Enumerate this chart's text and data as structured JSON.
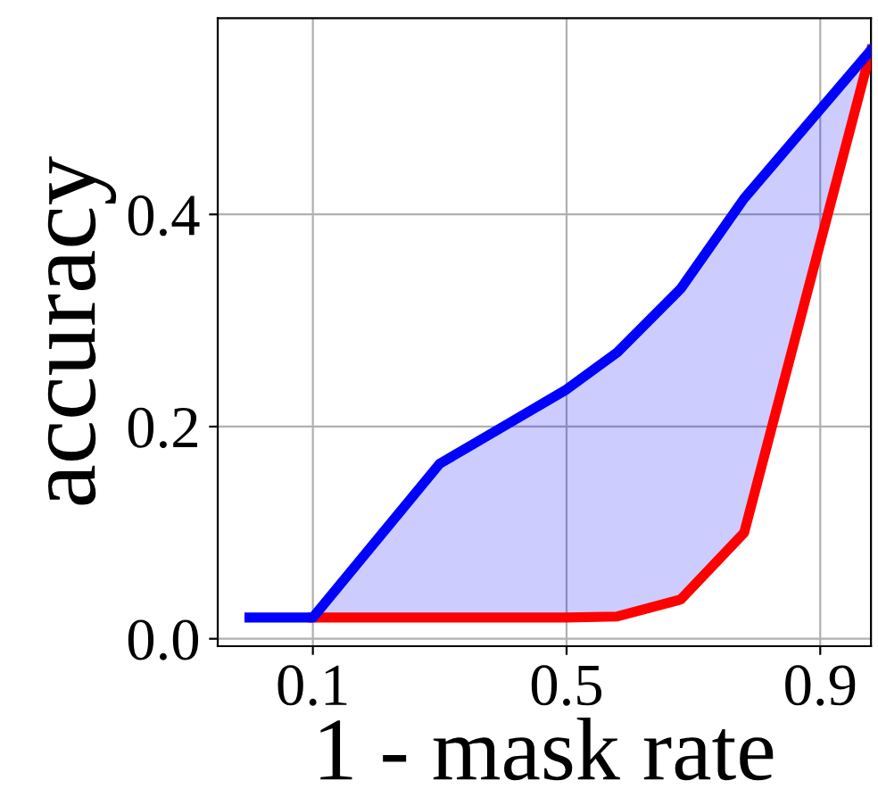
{
  "chart_data": {
    "type": "line",
    "xlabel": "1 - mask rate",
    "ylabel": "accuracy",
    "x": [
      0,
      0.1,
      0.3,
      0.4,
      0.5,
      0.58,
      0.68,
      0.78,
      0.98
    ],
    "series": [
      {
        "color": "#ff0000",
        "values": [
          null,
          0.02,
          0.02,
          0.02,
          0.02,
          0.021,
          0.037,
          0.1,
          0.555
        ]
      },
      {
        "color": "#0000ff",
        "values": [
          0.02,
          0.02,
          0.165,
          0.2,
          0.235,
          0.27,
          0.33,
          0.415,
          0.555
        ],
        "lower": [
          0.02,
          0.02,
          0.02,
          0.02,
          0.02,
          0.021,
          0.037,
          0.1,
          0.555
        ],
        "upper": [
          0.02,
          0.02,
          0.165,
          0.2,
          0.235,
          0.27,
          0.33,
          0.415,
          0.555
        ]
      }
    ],
    "xlim": [
      -0.05,
      0.98
    ],
    "ylim": [
      -0.007,
      0.585
    ],
    "xticks": [
      0.1,
      0.5,
      0.9
    ],
    "yticks": [
      {
        "value": 0,
        "label": "0.0"
      },
      0.2,
      0.4
    ],
    "grid": true,
    "marker": "none",
    "line_style": "solid"
  }
}
